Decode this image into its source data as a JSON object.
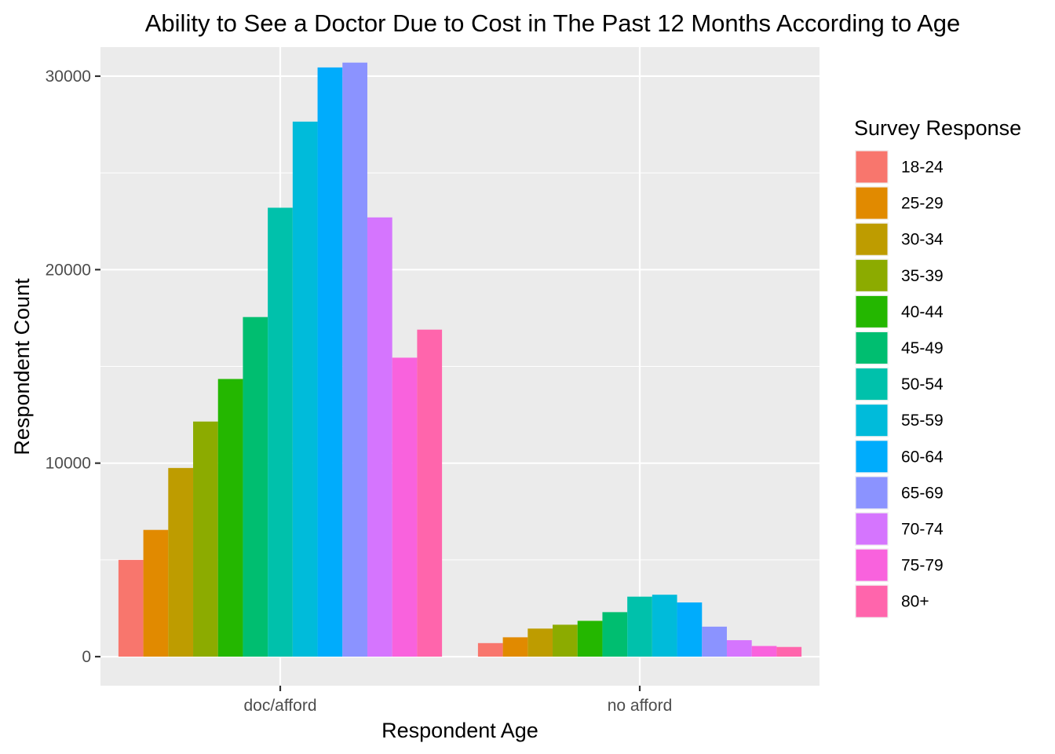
{
  "chart_data": {
    "type": "bar",
    "title": "Ability to See a Doctor Due to Cost in The Past 12 Months According to Age",
    "xlabel": "Respondent Age",
    "ylabel": "Respondent Count",
    "categories": [
      "doc/afford",
      "no afford"
    ],
    "ylim": [
      -1500,
      31500
    ],
    "yticks": [
      0,
      10000,
      20000,
      30000
    ],
    "yticks_labels": [
      "0",
      "10000",
      "20000",
      "30000"
    ],
    "grid": true,
    "legend": {
      "title": "Survey Response",
      "position": "right"
    },
    "series": [
      {
        "name": "18-24",
        "color": "#F8766D",
        "values": [
          5000,
          700
        ]
      },
      {
        "name": "25-29",
        "color": "#E18A00",
        "values": [
          6550,
          1000
        ]
      },
      {
        "name": "30-34",
        "color": "#BE9C00",
        "values": [
          9750,
          1450
        ]
      },
      {
        "name": "35-39",
        "color": "#8CAB00",
        "values": [
          12150,
          1650
        ]
      },
      {
        "name": "40-44",
        "color": "#24B700",
        "values": [
          14350,
          1850
        ]
      },
      {
        "name": "45-49",
        "color": "#00BE70",
        "values": [
          17550,
          2300
        ]
      },
      {
        "name": "50-54",
        "color": "#00C1AB",
        "values": [
          23200,
          3100
        ]
      },
      {
        "name": "55-59",
        "color": "#00BBDA",
        "values": [
          27650,
          3200
        ]
      },
      {
        "name": "60-64",
        "color": "#00ACFC",
        "values": [
          30450,
          2800
        ]
      },
      {
        "name": "65-69",
        "color": "#8B93FF",
        "values": [
          30700,
          1550
        ]
      },
      {
        "name": "70-74",
        "color": "#D575FE",
        "values": [
          22700,
          850
        ]
      },
      {
        "name": "75-79",
        "color": "#F962DD",
        "values": [
          15450,
          550
        ]
      },
      {
        "name": "80+",
        "color": "#FF65AC",
        "values": [
          16900,
          500
        ]
      }
    ]
  }
}
